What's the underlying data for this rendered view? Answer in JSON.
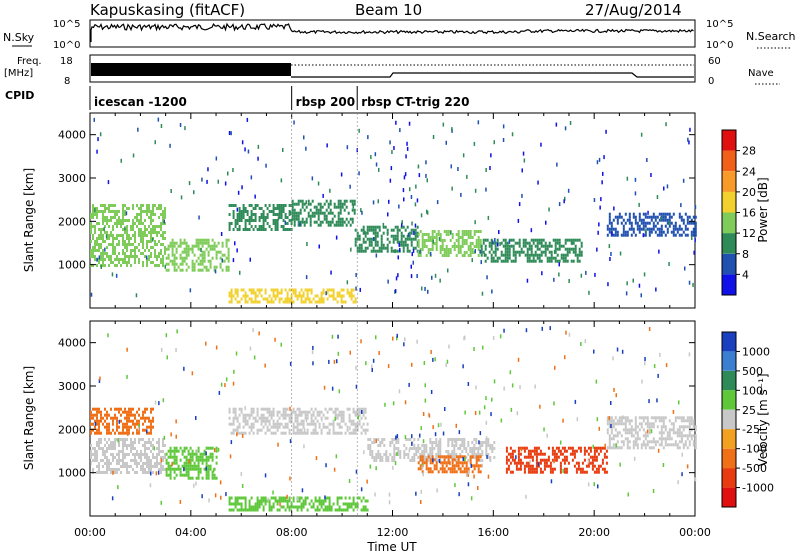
{
  "header": {
    "title": "Kapuskasing (fitACF)",
    "beam": "Beam 10",
    "date": "27/Aug/2014"
  },
  "noise_panel": {
    "left_label": "N.Sky",
    "right_label": "N.Search",
    "left_ticks": [
      "10^5",
      "10^0"
    ],
    "right_ticks": [
      "10^5",
      "10^0"
    ]
  },
  "freq_panel": {
    "left_label_top": "Freq.",
    "left_label_unit": "[MHz]",
    "right_label": "Nave",
    "left_ticks": [
      "18",
      "8"
    ],
    "right_ticks": [
      "60",
      "0"
    ]
  },
  "cpid": {
    "label": "CPID",
    "segments": [
      {
        "start_ut": 0.0,
        "name": "icescan -1200"
      },
      {
        "start_ut": 8.0,
        "name": "rbsp 200"
      },
      {
        "start_ut": 10.6,
        "name": "rbsp CT-trig 220"
      }
    ]
  },
  "x_axis": {
    "label": "Time UT",
    "ticks": [
      "00:00",
      "04:00",
      "08:00",
      "12:00",
      "16:00",
      "20:00",
      "00:00"
    ],
    "range_hours": [
      0,
      24
    ]
  },
  "power_colorbar": {
    "label": "Power [dB]",
    "ticks": [
      "4",
      "8",
      "12",
      "16",
      "20",
      "24",
      "28"
    ],
    "colors": [
      "#1010e8",
      "#2050b0",
      "#2e8b57",
      "#7fcc5a",
      "#f2d12e",
      "#f89a2a",
      "#f06018",
      "#e01010"
    ]
  },
  "velocity_colorbar": {
    "label": "Velocity [m s⁻¹]",
    "ticks": [
      "1000",
      "500",
      "100",
      "25",
      "-25",
      "-100",
      "-500",
      "-1000"
    ],
    "colors": [
      "#1a3fbf",
      "#3a7fd0",
      "#2e8b57",
      "#5ec83a",
      "#c8c8c8",
      "#f2a020",
      "#f07018",
      "#e83c10",
      "#e01010"
    ]
  },
  "chart_data": {
    "type": "heatmap",
    "x_unit": "hours UT",
    "ylim": [
      0,
      4500
    ],
    "ylabel": "Slant Range [km]",
    "yticks": [
      1000,
      2000,
      3000,
      4000
    ],
    "xlim": [
      0,
      24
    ],
    "panels": [
      {
        "name": "power",
        "bands": [
          {
            "t0": 0.0,
            "t1": 3.0,
            "r0": 1000,
            "r1": 2400,
            "value": 12
          },
          {
            "t0": 3.0,
            "t1": 5.5,
            "r0": 900,
            "r1": 1600,
            "value": 14
          },
          {
            "t0": 5.5,
            "t1": 8.0,
            "r0": 1800,
            "r1": 2400,
            "value": 10
          },
          {
            "t0": 8.0,
            "t1": 10.5,
            "r0": 1900,
            "r1": 2500,
            "value": 8
          },
          {
            "t0": 10.5,
            "t1": 13.0,
            "r0": 1300,
            "r1": 1900,
            "value": 10
          },
          {
            "t0": 13.0,
            "t1": 15.5,
            "r0": 1200,
            "r1": 1800,
            "value": 12
          },
          {
            "t0": 15.5,
            "t1": 19.5,
            "r0": 1100,
            "r1": 1600,
            "value": 10
          },
          {
            "t0": 20.5,
            "t1": 24.0,
            "r0": 1700,
            "r1": 2200,
            "value": 6
          },
          {
            "t0": 5.5,
            "t1": 10.5,
            "r0": 150,
            "r1": 450,
            "value": 18
          }
        ]
      },
      {
        "name": "velocity",
        "bands": [
          {
            "t0": 0.0,
            "t1": 2.5,
            "r0": 1900,
            "r1": 2500,
            "value": -150
          },
          {
            "t0": 0.0,
            "t1": 3.0,
            "r0": 1000,
            "r1": 1800,
            "value": 0
          },
          {
            "t0": 3.0,
            "t1": 5.0,
            "r0": 900,
            "r1": 1600,
            "value": 40
          },
          {
            "t0": 5.5,
            "t1": 11.0,
            "r0": 1900,
            "r1": 2500,
            "value": 0
          },
          {
            "t0": 11.0,
            "t1": 16.0,
            "r0": 1300,
            "r1": 1800,
            "value": 0
          },
          {
            "t0": 13.0,
            "t1": 15.5,
            "r0": 1000,
            "r1": 1400,
            "value": -150
          },
          {
            "t0": 16.5,
            "t1": 20.5,
            "r0": 1000,
            "r1": 1600,
            "value": -600
          },
          {
            "t0": 20.5,
            "t1": 24.0,
            "r0": 1600,
            "r1": 2300,
            "value": 0
          },
          {
            "t0": 5.5,
            "t1": 11.0,
            "r0": 150,
            "r1": 450,
            "value": 60
          }
        ]
      }
    ]
  }
}
